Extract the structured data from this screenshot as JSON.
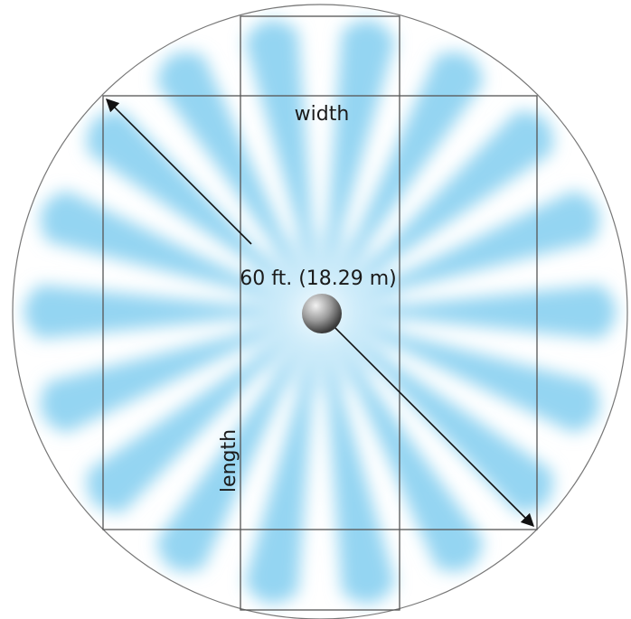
{
  "diagram": {
    "width_label": "width",
    "length_label": "length",
    "diameter_label": "60 ft. (18.29 m)",
    "spoke_count": 18,
    "colors": {
      "spray": "#8ed3f1",
      "rule": "#555555",
      "arrow": "#111111",
      "sensor_light": "#f2f2f2",
      "sensor_dark": "#3a3a3a"
    }
  }
}
